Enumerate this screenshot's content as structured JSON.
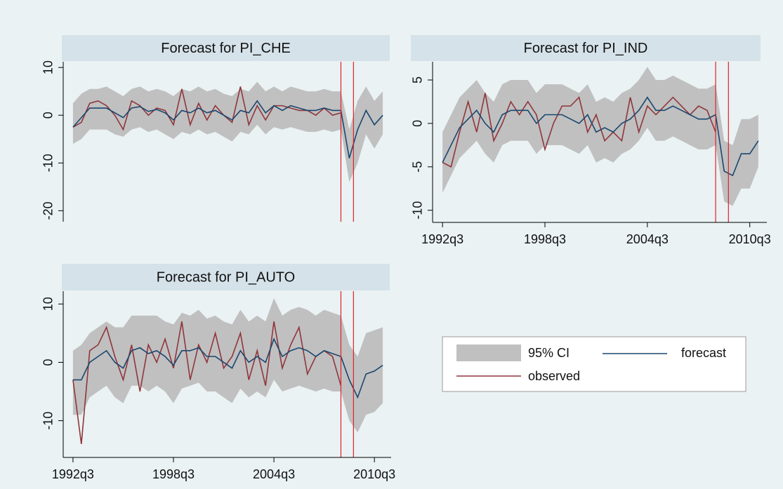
{
  "legend": {
    "ci": {
      "name": "95% CI",
      "color": "#c0c0c0"
    },
    "forecast": {
      "name": "forecast",
      "color": "#1a476f"
    },
    "observed": {
      "name": "observed",
      "color": "#90353b"
    }
  },
  "chart_data": [
    {
      "type": "line",
      "title": "Forecast for PI_CHE",
      "x": [
        130,
        132,
        134,
        136,
        138,
        140,
        142,
        144,
        146,
        148,
        150,
        152,
        154,
        156,
        158,
        160,
        162,
        164,
        166,
        168,
        170,
        172,
        174,
        176,
        178,
        180,
        182,
        184,
        186,
        188,
        190,
        192,
        194,
        196,
        198,
        200,
        202,
        204
      ],
      "forecast": [
        -2.5,
        -0.5,
        1.5,
        1.5,
        1.5,
        0.5,
        -0.5,
        1.5,
        1.8,
        0.8,
        1.2,
        0.5,
        -1,
        1,
        0.5,
        1.5,
        0.5,
        1,
        0,
        -1,
        1,
        0.5,
        3,
        0.5,
        2,
        1,
        2,
        1.5,
        1,
        1,
        1.5,
        1,
        1,
        -9,
        -3,
        1,
        -2,
        0
      ],
      "observed": [
        -2.5,
        -1.5,
        2.5,
        3,
        2,
        0,
        -3,
        3,
        2,
        0,
        1.5,
        1,
        -2,
        5.5,
        -2,
        2.5,
        -1,
        2,
        0,
        -1.5,
        6,
        -2,
        2,
        -1,
        2,
        2,
        1.5,
        1,
        1,
        0,
        1.5,
        0,
        0.5,
        null,
        null,
        null,
        null,
        null
      ],
      "ci_upper": [
        2.5,
        4.5,
        5.5,
        5.5,
        6,
        5,
        4,
        5.5,
        6,
        5,
        5.5,
        5,
        4,
        5.5,
        5,
        6,
        5,
        5.5,
        4.5,
        4,
        5.5,
        5,
        7,
        5,
        6,
        5,
        6,
        5.5,
        5,
        5,
        5.5,
        5,
        5,
        -3,
        3,
        6,
        3,
        5
      ],
      "ci_lower": [
        -6,
        -5,
        -3,
        -3,
        -3,
        -4,
        -4.5,
        -3,
        -2.5,
        -3.5,
        -3,
        -4,
        -5,
        -3.5,
        -4,
        -3,
        -4,
        -3.5,
        -4.5,
        -5.5,
        -3.5,
        -4,
        -2,
        -4,
        -2.5,
        -3,
        -2.5,
        -3,
        -3.5,
        -3.5,
        -3,
        -3.5,
        -3,
        -14,
        -10,
        -4,
        -7,
        -4
      ],
      "xlim": [
        128,
        206
      ],
      "ylim": [
        -22.3,
        11.2
      ],
      "yticks": [
        10,
        0,
        -10,
        -20
      ],
      "vlines": {
        "x": [
          194,
          197
        ],
        "color": "#e0202a"
      }
    },
    {
      "type": "line",
      "title": "Forecast for PI_IND",
      "x": [
        130,
        132,
        134,
        136,
        138,
        140,
        142,
        144,
        146,
        148,
        150,
        152,
        154,
        156,
        158,
        160,
        162,
        164,
        166,
        168,
        170,
        172,
        174,
        176,
        178,
        180,
        182,
        184,
        186,
        188,
        190,
        192,
        194,
        196,
        198,
        200,
        202,
        204
      ],
      "forecast": [
        -4.5,
        -2.5,
        -0.5,
        0.5,
        1.5,
        0,
        -1,
        1,
        1.5,
        1.5,
        1.5,
        0,
        1,
        1,
        1,
        0.5,
        0,
        1,
        -1,
        -0.5,
        -1,
        0,
        0.5,
        1.5,
        3,
        1.5,
        1.5,
        2,
        1.5,
        1,
        0.5,
        0.5,
        1,
        -5.5,
        -6,
        -3.5,
        -3.5,
        -2
      ],
      "observed": [
        -4.5,
        -5,
        -1,
        2.5,
        -1,
        3.5,
        -2,
        0,
        2.5,
        1,
        2.5,
        1,
        -3,
        0,
        2,
        2,
        3,
        -1,
        1,
        -2,
        -1,
        -2,
        3,
        -1,
        2,
        1,
        2,
        3,
        2,
        1,
        2,
        1.5,
        -1,
        null,
        null,
        null,
        null,
        null
      ],
      "ci_upper": [
        -1,
        1,
        3,
        4,
        5,
        3.5,
        2.5,
        4.5,
        5,
        5,
        5,
        3.5,
        4.5,
        4.5,
        4.5,
        4,
        3.5,
        4.5,
        2.5,
        3,
        2.5,
        3.5,
        4,
        5,
        6.5,
        5,
        5,
        5.5,
        5,
        4.5,
        4,
        4,
        4.5,
        -2,
        -2.5,
        0.5,
        0.5,
        1
      ],
      "ci_lower": [
        -8,
        -6,
        -4,
        -3,
        -2,
        -3.5,
        -4.5,
        -2.5,
        -2,
        -2,
        -2,
        -3.5,
        -2.5,
        -2.5,
        -2.5,
        -3,
        -3.5,
        -2.5,
        -4.5,
        -4,
        -4.5,
        -3.5,
        -3,
        -2,
        -0.5,
        -2,
        -2,
        -1.5,
        -2,
        -2.5,
        -3,
        -3,
        -2.5,
        -9,
        -9.5,
        -7.5,
        -7.5,
        -5
      ],
      "xlim": [
        128,
        206
      ],
      "ylim": [
        -11.4,
        7.1
      ],
      "yticks": [
        5,
        0,
        -5,
        -10
      ],
      "xticks": [
        {
          "value": 130,
          "label": "1992q3"
        },
        {
          "value": 154,
          "label": "1998q3"
        },
        {
          "value": 178,
          "label": "2004q3"
        },
        {
          "value": 202,
          "label": "2010q3"
        }
      ],
      "vlines": {
        "x": [
          194,
          197
        ],
        "color": "#e0202a"
      }
    },
    {
      "type": "line",
      "title": "Forecast for PI_AUTO",
      "x": [
        130,
        132,
        134,
        136,
        138,
        140,
        142,
        144,
        146,
        148,
        150,
        152,
        154,
        156,
        158,
        160,
        162,
        164,
        166,
        168,
        170,
        172,
        174,
        176,
        178,
        180,
        182,
        184,
        186,
        188,
        190,
        192,
        194,
        196,
        198,
        200,
        202,
        204
      ],
      "forecast": [
        -3,
        -3,
        0,
        1,
        2,
        0,
        -1,
        2,
        2.5,
        1.5,
        2,
        1,
        -0.5,
        2,
        2,
        2.5,
        1,
        1,
        0,
        -1,
        2,
        0,
        1,
        0,
        4,
        1,
        2,
        2.5,
        2,
        1,
        2,
        1.5,
        1,
        -3,
        -6,
        -2,
        -1.5,
        -0.5
      ],
      "observed": [
        -3,
        -14,
        2,
        3,
        6,
        1,
        -3,
        3,
        -5,
        3,
        0,
        4,
        -1,
        7,
        -3,
        3,
        0,
        5,
        -1,
        1,
        5,
        -3,
        2,
        -4,
        7,
        -1,
        3,
        6,
        -2,
        1,
        2,
        1,
        -4,
        null,
        null,
        null,
        null,
        null
      ],
      "ci_upper": [
        2,
        3,
        5,
        6,
        7,
        6,
        6,
        8,
        8,
        8,
        8,
        7,
        6.5,
        8.5,
        8,
        9,
        7.5,
        8,
        7,
        6.5,
        9,
        7,
        8,
        7,
        11,
        8,
        9,
        9.5,
        9,
        8,
        9,
        8.5,
        8,
        3,
        1,
        5,
        5.5,
        6
      ],
      "ci_lower": [
        -9,
        -9,
        -6,
        -5,
        -4,
        -6,
        -7,
        -4,
        -4,
        -5,
        -4,
        -5,
        -7,
        -4.5,
        -4,
        -3.5,
        -5,
        -5,
        -6,
        -7,
        -4.5,
        -6,
        -5,
        -6,
        -3,
        -5,
        -4.5,
        -4,
        -4.5,
        -5,
        -4.5,
        -5,
        -5,
        -10,
        -12,
        -9,
        -8.5,
        -7
      ],
      "xlim": [
        128,
        206
      ],
      "ylim": [
        -16.3,
        12.2
      ],
      "yticks": [
        10,
        0,
        -10
      ],
      "xticks": [
        {
          "value": 130,
          "label": "1992q3"
        },
        {
          "value": 154,
          "label": "1998q3"
        },
        {
          "value": 178,
          "label": "2004q3"
        },
        {
          "value": 202,
          "label": "2010q3"
        }
      ],
      "vlines": {
        "x": [
          194,
          197
        ],
        "color": "#e0202a"
      }
    }
  ]
}
